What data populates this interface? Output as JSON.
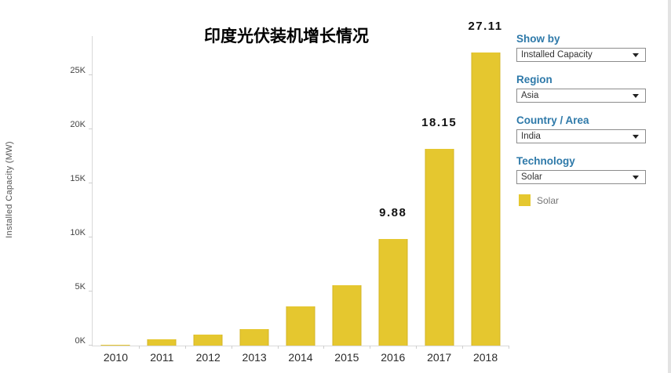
{
  "title": "印度光伏装机增长情况",
  "chart_data": {
    "type": "bar",
    "title": "印度光伏装机增长情况",
    "xlabel": "",
    "ylabel": "Installed Capacity (MW)",
    "categories": [
      "2010",
      "2011",
      "2012",
      "2013",
      "2014",
      "2015",
      "2016",
      "2017",
      "2018"
    ],
    "values_k": [
      0.07,
      0.6,
      1.0,
      1.5,
      3.6,
      5.6,
      9.88,
      18.15,
      27.11
    ],
    "bar_labels": [
      "",
      "",
      "",
      "",
      "",
      "",
      "9.88",
      "18.15",
      "27.11"
    ],
    "y_ticks": [
      {
        "value_k": 0,
        "label": "0K"
      },
      {
        "value_k": 5,
        "label": "5K"
      },
      {
        "value_k": 10,
        "label": "10K"
      },
      {
        "value_k": 15,
        "label": "15K"
      },
      {
        "value_k": 20,
        "label": "20K"
      },
      {
        "value_k": 25,
        "label": "25K"
      }
    ],
    "ylim_k": [
      0,
      28.6
    ],
    "grid": false,
    "legend_position": "right",
    "bar_color": "#e5c72f"
  },
  "legend": {
    "swatch_color": "#e5c72f",
    "label": "Solar"
  },
  "side_panel": {
    "filters": [
      {
        "label": "Show by",
        "value": "Installed Capacity"
      },
      {
        "label": "Region",
        "value": "Asia"
      },
      {
        "label": "Country / Area",
        "value": "India"
      },
      {
        "label": "Technology",
        "value": "Solar"
      }
    ],
    "label_color": "#2e79a9"
  }
}
